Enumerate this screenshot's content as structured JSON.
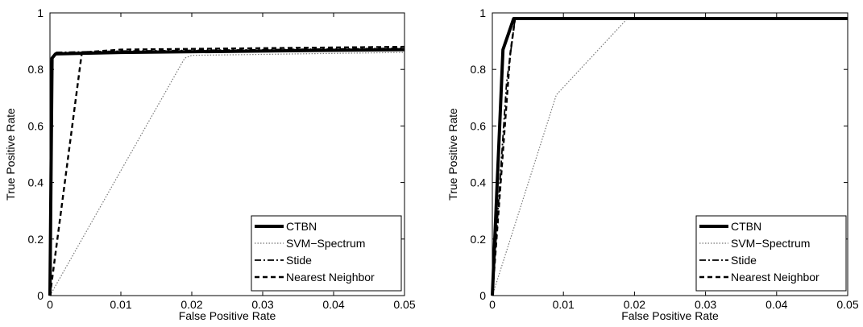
{
  "chart_data": [
    {
      "type": "line",
      "title": "",
      "xlabel": "False Positive Rate",
      "ylabel": "True Positive Rate",
      "xlim": [
        0,
        0.05
      ],
      "ylim": [
        0,
        1
      ],
      "xticks": [
        0,
        0.01,
        0.02,
        0.03,
        0.04,
        0.05
      ],
      "xtick_labels": [
        "0",
        "0.01",
        "0.02",
        "0.03",
        "0.04",
        "0.05"
      ],
      "yticks": [
        0,
        0.2,
        0.4,
        0.6,
        0.8,
        1
      ],
      "ytick_labels": [
        "0",
        "0.2",
        "0.4",
        "0.6",
        "0.8",
        "1"
      ],
      "grid": false,
      "legend_position": "bottom-right",
      "series": [
        {
          "name": "CTBN",
          "style": "solid-thick",
          "x": [
            0,
            0.0003,
            0.0008,
            0.01,
            0.05
          ],
          "y": [
            0,
            0.84,
            0.855,
            0.86,
            0.87
          ]
        },
        {
          "name": "SVM−Spectrum",
          "style": "dotted",
          "x": [
            0,
            0.019,
            0.02,
            0.05
          ],
          "y": [
            0,
            0.84,
            0.85,
            0.86
          ]
        },
        {
          "name": "Stide",
          "style": "dashdot",
          "x": [
            0,
            0.0002,
            0.0007,
            0.01,
            0.05
          ],
          "y": [
            0,
            0.83,
            0.86,
            0.865,
            0.875
          ]
        },
        {
          "name": "Nearest Neighbor",
          "style": "dashed",
          "x": [
            0,
            0.0045,
            0.01,
            0.05
          ],
          "y": [
            0,
            0.86,
            0.87,
            0.88
          ]
        }
      ]
    },
    {
      "type": "line",
      "title": "",
      "xlabel": "False Positive Rate",
      "ylabel": "True Positive Rate",
      "xlim": [
        0,
        0.05
      ],
      "ylim": [
        0,
        1
      ],
      "xticks": [
        0,
        0.01,
        0.02,
        0.03,
        0.04,
        0.05
      ],
      "xtick_labels": [
        "0",
        "0.01",
        "0.02",
        "0.03",
        "0.04",
        "0.05"
      ],
      "yticks": [
        0,
        0.2,
        0.4,
        0.6,
        0.8,
        1
      ],
      "ytick_labels": [
        "0",
        "0.2",
        "0.4",
        "0.6",
        "0.8",
        "1"
      ],
      "grid": false,
      "legend_position": "bottom-right",
      "series": [
        {
          "name": "CTBN",
          "style": "solid-thick",
          "x": [
            0,
            0.0015,
            0.003,
            0.05
          ],
          "y": [
            0,
            0.87,
            0.98,
            0.98
          ]
        },
        {
          "name": "SVM−Spectrum",
          "style": "dotted",
          "x": [
            0,
            0.009,
            0.019,
            0.05
          ],
          "y": [
            0,
            0.71,
            0.98,
            0.98
          ]
        },
        {
          "name": "Stide",
          "style": "dashdot",
          "x": [
            0,
            0.002,
            0.0032,
            0.05
          ],
          "y": [
            0,
            0.75,
            0.98,
            0.98
          ]
        },
        {
          "name": "Nearest Neighbor",
          "style": "dashed",
          "x": [
            0,
            0.0025,
            0.0032,
            0.05
          ],
          "y": [
            0,
            0.85,
            0.98,
            0.98
          ]
        }
      ]
    }
  ]
}
